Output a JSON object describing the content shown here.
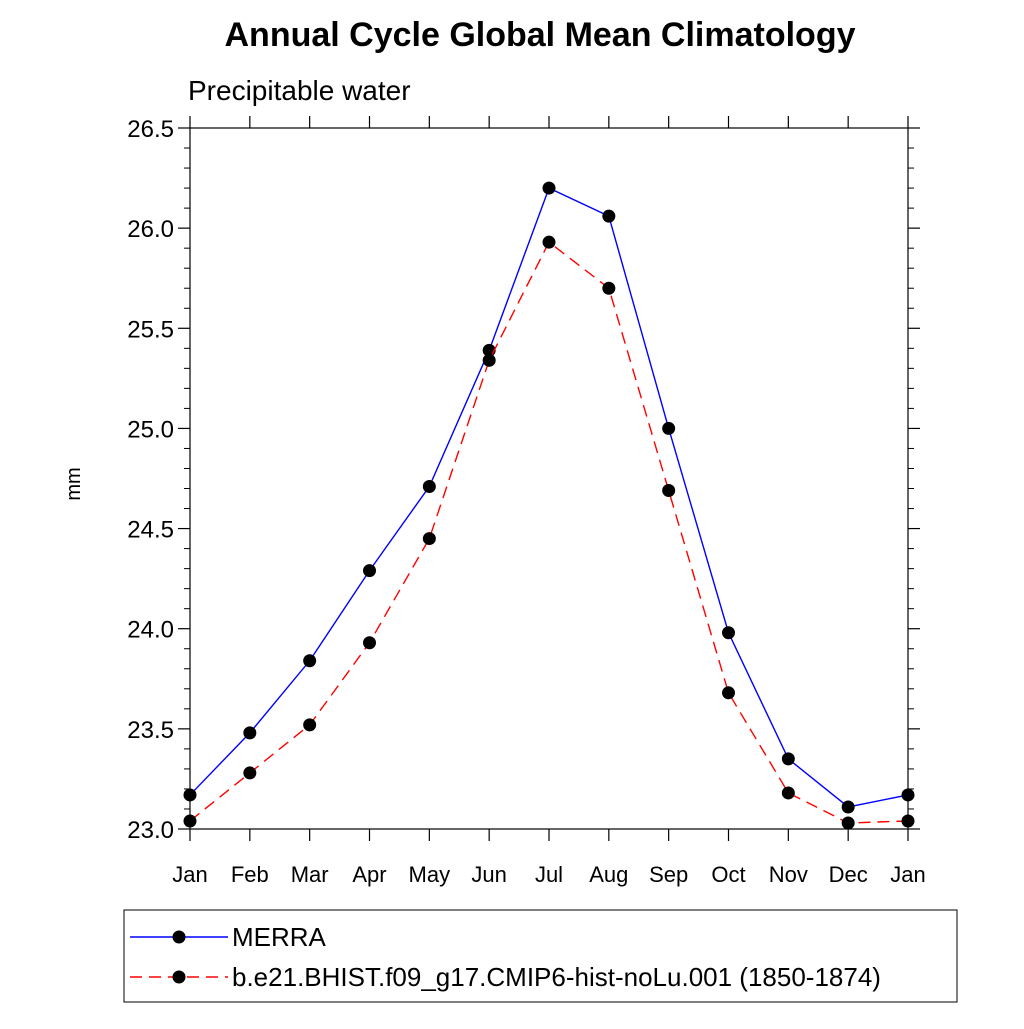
{
  "chart_data": {
    "type": "line",
    "title": "Annual Cycle Global Mean Climatology",
    "subtitle": "Precipitable water",
    "xlabel": "",
    "ylabel": "mm",
    "categories": [
      "Jan",
      "Feb",
      "Mar",
      "Apr",
      "May",
      "Jun",
      "Jul",
      "Aug",
      "Sep",
      "Oct",
      "Nov",
      "Dec",
      "Jan"
    ],
    "ylim": [
      23.0,
      26.5
    ],
    "yticks": [
      23.0,
      23.5,
      24.0,
      24.5,
      25.0,
      25.5,
      26.0,
      26.5
    ],
    "ytick_labels": [
      "23.0",
      "23.5",
      "24.0",
      "24.5",
      "25.0",
      "25.5",
      "26.0",
      "26.5"
    ],
    "grid": false,
    "legend_placement": "bottom",
    "series": [
      {
        "name": "MERRA",
        "color": "#0000ff",
        "dash": "solid",
        "marker": "filled-circle",
        "values": [
          23.17,
          23.48,
          23.84,
          24.29,
          24.71,
          25.39,
          26.2,
          26.06,
          25.0,
          23.98,
          23.35,
          23.11,
          23.17
        ]
      },
      {
        "name": "b.e21.BHIST.f09_g17.CMIP6-hist-noLu.001 (1850-1874)",
        "color": "#ff0000",
        "dash": "dashed",
        "marker": "filled-circle",
        "values": [
          23.04,
          23.28,
          23.52,
          23.93,
          24.45,
          25.34,
          25.93,
          25.7,
          24.69,
          23.68,
          23.18,
          23.03,
          23.04
        ]
      }
    ]
  }
}
